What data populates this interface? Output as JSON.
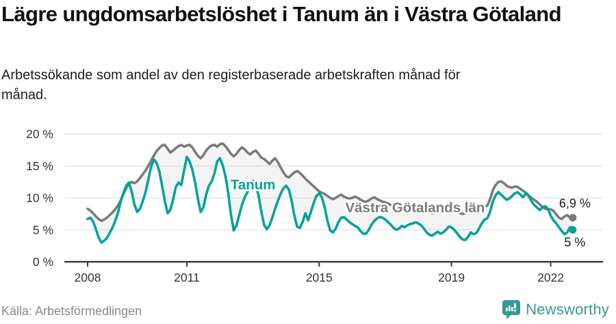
{
  "header": {
    "title": "Lägre ungdomsarbetslöshet i Tanum än i Västra Götaland",
    "subtitle": "Arbetssökande som andel av den registerbaserade arbetskraften månad för månad."
  },
  "footer": {
    "source": "Källa: Arbetsförmedlingen",
    "brand_name": "Newsworthy",
    "brand_color": "#38998f",
    "brand_icon": "newsworthy-speech-bubble-bar-chart-icon"
  },
  "chart_data": {
    "type": "line",
    "title": "Lägre ungdomsarbetslöshet i Tanum än i Västra Götaland",
    "x_start_year": 2008,
    "points_per_year": 12,
    "x_ticks": [
      2008,
      2011,
      2015,
      2019,
      2022
    ],
    "x_tick_labels": [
      "2008",
      "2011",
      "2015",
      "2019",
      "2022"
    ],
    "ylim": [
      0,
      20
    ],
    "y_ticks": [
      0,
      5,
      10,
      15,
      20
    ],
    "y_tick_labels": [
      "0 %",
      "5 %",
      "10 %",
      "15 %",
      "20 %"
    ],
    "grid": true,
    "legend_position": "inline-annotations",
    "colors": {
      "grid": "#e2e2e2",
      "axis": "#3b3b3b",
      "tick_text": "#333333",
      "end_label_text": "#1a1a1a",
      "fill_between": "rgba(185,185,185,0.16)",
      "label_halo": "#ffffff"
    },
    "series": [
      {
        "name": "Västra Götalands län",
        "color": "#7b7b7b",
        "end_label": "6,9 %",
        "values": [
          8.3,
          8.0,
          7.6,
          7.1,
          6.7,
          6.4,
          6.6,
          6.9,
          7.3,
          7.7,
          8.2,
          8.8,
          9.6,
          10.6,
          11.5,
          12.2,
          12.5,
          12.3,
          12.6,
          13.1,
          13.7,
          14.3,
          15.0,
          15.8,
          16.6,
          17.3,
          17.8,
          18.2,
          18.3,
          17.7,
          17.1,
          17.4,
          17.8,
          18.1,
          18.3,
          18.0,
          18.2,
          18.3,
          17.9,
          17.2,
          16.6,
          16.2,
          16.7,
          17.4,
          17.9,
          18.2,
          18.3,
          18.0,
          18.4,
          18.5,
          18.1,
          17.5,
          16.9,
          16.5,
          16.9,
          17.5,
          17.9,
          17.6,
          17.1,
          16.8,
          17.2,
          17.4,
          16.9,
          16.3,
          16.1,
          15.7,
          15.3,
          15.8,
          16.2,
          15.6,
          14.8,
          14.0,
          13.4,
          13.2,
          13.6,
          14.0,
          14.2,
          13.9,
          13.5,
          13.0,
          12.6,
          12.2,
          11.8,
          11.4,
          11.0,
          10.8,
          10.6,
          10.3,
          10.0,
          9.8,
          10.0,
          10.3,
          10.5,
          10.2,
          10.0,
          9.9,
          10.0,
          10.2,
          10.0,
          9.7,
          9.5,
          9.4,
          9.6,
          9.9,
          10.1,
          9.8,
          9.6,
          9.4,
          9.3,
          9.1,
          8.9,
          8.6,
          8.4,
          8.3,
          8.5,
          8.8,
          8.9,
          8.7,
          8.5,
          8.4,
          8.4,
          8.3,
          8.1,
          7.9,
          7.7,
          7.6,
          7.8,
          8.1,
          8.1,
          7.9,
          7.8,
          7.9,
          8.0,
          7.9,
          7.8,
          7.6,
          7.5,
          7.6,
          7.9,
          8.2,
          8.1,
          8.0,
          8.1,
          8.4,
          8.6,
          8.8,
          9.8,
          11.2,
          12.0,
          12.5,
          12.6,
          12.3,
          11.9,
          11.7,
          11.6,
          11.8,
          11.7,
          11.4,
          11.1,
          10.8,
          10.4,
          10.0,
          9.7,
          9.4,
          9.0,
          8.6,
          8.3,
          8.2,
          8.2,
          8.0,
          7.4,
          6.9,
          6.7,
          7.1,
          7.3,
          6.9,
          6.9
        ]
      },
      {
        "name": "Tanum",
        "color": "#00a39a",
        "end_label": "5 %",
        "values": [
          6.7,
          6.9,
          6.3,
          5.1,
          3.8,
          3.0,
          3.3,
          3.7,
          4.5,
          5.3,
          6.4,
          7.6,
          9.4,
          10.8,
          11.9,
          12.4,
          11.0,
          8.9,
          7.8,
          8.3,
          9.5,
          10.9,
          12.8,
          14.8,
          16.0,
          15.5,
          14.2,
          12.0,
          9.5,
          7.6,
          8.1,
          9.7,
          11.7,
          12.4,
          12.0,
          14.3,
          16.4,
          15.7,
          14.4,
          12.4,
          9.9,
          7.8,
          8.5,
          10.5,
          11.9,
          12.5,
          13.8,
          15.7,
          16.2,
          15.1,
          13.4,
          10.8,
          7.4,
          4.9,
          5.7,
          7.3,
          8.9,
          10.1,
          10.9,
          12.1,
          12.7,
          12.1,
          10.4,
          7.9,
          5.8,
          5.1,
          5.7,
          6.9,
          8.3,
          9.5,
          10.6,
          11.5,
          11.9,
          11.3,
          9.6,
          7.2,
          5.5,
          5.3,
          6.2,
          7.6,
          6.5,
          7.8,
          9.2,
          10.3,
          10.7,
          10.1,
          8.5,
          6.4,
          4.9,
          4.6,
          5.2,
          6.2,
          6.9,
          7.0,
          6.6,
          6.2,
          5.9,
          5.6,
          5.4,
          4.8,
          4.4,
          4.4,
          5.0,
          5.8,
          6.4,
          6.8,
          7.0,
          6.9,
          6.6,
          6.2,
          5.8,
          5.3,
          5.0,
          5.2,
          5.6,
          5.4,
          5.7,
          5.9,
          6.0,
          6.2,
          6.0,
          5.7,
          5.2,
          4.6,
          4.2,
          4.1,
          4.4,
          4.7,
          4.4,
          4.6,
          5.0,
          5.5,
          5.4,
          5.0,
          4.5,
          3.9,
          3.5,
          3.4,
          3.9,
          4.6,
          4.3,
          4.5,
          5.2,
          6.0,
          6.6,
          6.8,
          7.8,
          9.4,
          10.4,
          10.9,
          10.5,
          10.1,
          9.7,
          9.9,
          10.3,
          10.7,
          10.9,
          10.5,
          10.1,
          10.7,
          10.3,
          9.5,
          8.9,
          8.5,
          8.1,
          8.5,
          8.7,
          8.3,
          7.2,
          6.5,
          6.0,
          5.4,
          4.8,
          4.3,
          4.6,
          5.4,
          5.0
        ]
      }
    ],
    "annotations": [
      {
        "text": "Tanum",
        "year": 2013.0,
        "value": 12.1,
        "series": 1
      },
      {
        "text": "Västra Götalands län",
        "year": 2017.9,
        "value": 8.5,
        "series": 0
      }
    ]
  }
}
